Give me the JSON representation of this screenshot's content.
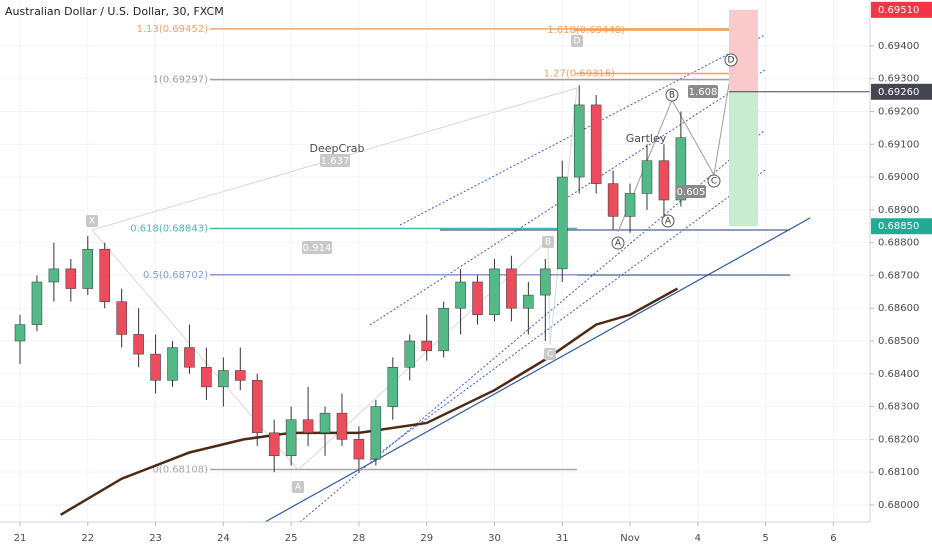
{
  "chart_data": {
    "type": "candlestick",
    "title": "Australian Dollar / U.S. Dollar, 30, FXCM",
    "xlim": [
      -0.295,
      12.54
    ],
    "xticks": [
      {
        "value": 0,
        "label": "21"
      },
      {
        "value": 1,
        "label": "22"
      },
      {
        "value": 2,
        "label": "23"
      },
      {
        "value": 3,
        "label": "24"
      },
      {
        "value": 4,
        "label": "25"
      },
      {
        "value": 5,
        "label": "28"
      },
      {
        "value": 6,
        "label": "29"
      },
      {
        "value": 7,
        "label": "30"
      },
      {
        "value": 8,
        "label": "31"
      },
      {
        "value": 9,
        "label": "Nov"
      },
      {
        "value": 10,
        "label": "4"
      },
      {
        "value": 11,
        "label": "5"
      },
      {
        "value": 12,
        "label": "6"
      }
    ],
    "ylim": [
      0.67948,
      0.6954
    ],
    "yticks": [
      {
        "value": 0.68,
        "label": "0.68000"
      },
      {
        "value": 0.681,
        "label": "0.68100"
      },
      {
        "value": 0.682,
        "label": "0.68200"
      },
      {
        "value": 0.683,
        "label": "0.68300"
      },
      {
        "value": 0.684,
        "label": "0.68400"
      },
      {
        "value": 0.685,
        "label": "0.68500"
      },
      {
        "value": 0.686,
        "label": "0.68600"
      },
      {
        "value": 0.687,
        "label": "0.68700"
      },
      {
        "value": 0.688,
        "label": "0.68800"
      },
      {
        "value": 0.689,
        "label": "0.68900"
      },
      {
        "value": 0.69,
        "label": "0.69000"
      },
      {
        "value": 0.691,
        "label": "0.69100"
      },
      {
        "value": 0.692,
        "label": "0.69200"
      },
      {
        "value": 0.693,
        "label": "0.69300"
      },
      {
        "value": 0.694,
        "label": "0.69400"
      }
    ],
    "grid": true,
    "up_color": "#53b987",
    "down_color": "#eb4d5c",
    "x": [
      0,
      0.25,
      0.5,
      0.75,
      1,
      1.25,
      1.5,
      1.75,
      2,
      2.25,
      2.5,
      2.75,
      3,
      3.25,
      3.5,
      3.75,
      4,
      4.25,
      4.5,
      4.75,
      5,
      5.25,
      5.5,
      5.75,
      6,
      6.25,
      6.5,
      6.75,
      7,
      7.25,
      7.5,
      7.75,
      8,
      8.25,
      8.5,
      8.75,
      9,
      9.25,
      9.5,
      9.75
    ],
    "open": [
      0.685,
      0.6855,
      0.6868,
      0.6872,
      0.6866,
      0.6878,
      0.6862,
      0.6852,
      0.6846,
      0.6838,
      0.6848,
      0.6842,
      0.6836,
      0.6841,
      0.6838,
      0.6822,
      0.6815,
      0.6826,
      0.6822,
      0.6828,
      0.682,
      0.6814,
      0.683,
      0.6842,
      0.685,
      0.6847,
      0.686,
      0.6868,
      0.6858,
      0.6872,
      0.686,
      0.6864,
      0.6872,
      0.69,
      0.6922,
      0.6898,
      0.6888,
      0.6895,
      0.6905,
      0.6893
    ],
    "high": [
      0.6858,
      0.687,
      0.688,
      0.6875,
      0.6882,
      0.688,
      0.6866,
      0.686,
      0.6852,
      0.685,
      0.6855,
      0.6848,
      0.6845,
      0.6848,
      0.684,
      0.6826,
      0.683,
      0.6836,
      0.683,
      0.6834,
      0.6824,
      0.6832,
      0.6845,
      0.6852,
      0.6858,
      0.6862,
      0.6872,
      0.687,
      0.6875,
      0.6876,
      0.6868,
      0.6875,
      0.6905,
      0.6928,
      0.6925,
      0.6902,
      0.6898,
      0.691,
      0.691,
      0.692
    ],
    "low": [
      0.6843,
      0.6853,
      0.6862,
      0.6862,
      0.6864,
      0.686,
      0.6848,
      0.6842,
      0.6834,
      0.6836,
      0.684,
      0.6832,
      0.683,
      0.6835,
      0.6818,
      0.681,
      0.6812,
      0.6818,
      0.6815,
      0.6818,
      0.681,
      0.6812,
      0.6826,
      0.6838,
      0.6844,
      0.6845,
      0.6852,
      0.6855,
      0.6856,
      0.6856,
      0.6852,
      0.685,
      0.6868,
      0.6895,
      0.6895,
      0.6884,
      0.6883,
      0.689,
      0.6888,
      0.6891
    ],
    "close": [
      0.6855,
      0.6868,
      0.6872,
      0.6866,
      0.6878,
      0.6862,
      0.6852,
      0.6846,
      0.6838,
      0.6848,
      0.6842,
      0.6836,
      0.6841,
      0.6838,
      0.6822,
      0.6815,
      0.6826,
      0.6822,
      0.6828,
      0.682,
      0.6814,
      0.683,
      0.6842,
      0.685,
      0.6847,
      0.686,
      0.6868,
      0.6858,
      0.6872,
      0.686,
      0.6864,
      0.6872,
      0.69,
      0.6922,
      0.6898,
      0.6888,
      0.6895,
      0.6905,
      0.6893,
      0.6912
    ],
    "moving_average": {
      "color": "#4e2a14",
      "x": [
        0.6,
        1.5,
        2.5,
        3.3,
        4,
        5,
        6,
        7,
        7.8,
        8.5,
        9,
        9.7
      ],
      "values": [
        0.6797,
        0.6808,
        0.6816,
        0.682,
        0.6822,
        0.6822,
        0.6825,
        0.6835,
        0.6845,
        0.6855,
        0.6858,
        0.6866
      ]
    },
    "fib_levels": [
      {
        "value": 0.69452,
        "label": "1.13(0.69452)",
        "color": "#f5a25d"
      },
      {
        "value": 0.69448,
        "label": "1.618(0.69448)",
        "color": "#f5a25d"
      },
      {
        "value": 0.69297,
        "label": "1(0.69297)",
        "color": "#9e9e9e"
      },
      {
        "value": 0.69316,
        "label": "1.27(0.69316)",
        "color": "#f5a25d"
      },
      {
        "value": 0.68843,
        "label": "0.618(0.68843)",
        "color": "#4db6ac"
      },
      {
        "value": 0.68702,
        "label": "0.5(0.68702)",
        "color": "#8a9ad6"
      },
      {
        "value": 0.68108,
        "label": "0(0.68108)",
        "color": "#a8a8a8"
      }
    ],
    "price_tags": [
      {
        "value": 0.6951,
        "label": "0.69510",
        "color": "#f23645"
      },
      {
        "value": 0.6926,
        "label": "0.69260",
        "color": "#434651"
      },
      {
        "value": 0.6885,
        "label": "0.68850",
        "color": "#22ab94"
      }
    ],
    "patterns": [
      "DeepCrab",
      "Gartley"
    ],
    "ratios": [
      "0.914",
      "1.637",
      "1.608",
      "0.605"
    ],
    "points": [
      "X",
      "A",
      "B",
      "C",
      "D",
      "A",
      "A",
      "B",
      "C",
      "D"
    ]
  }
}
